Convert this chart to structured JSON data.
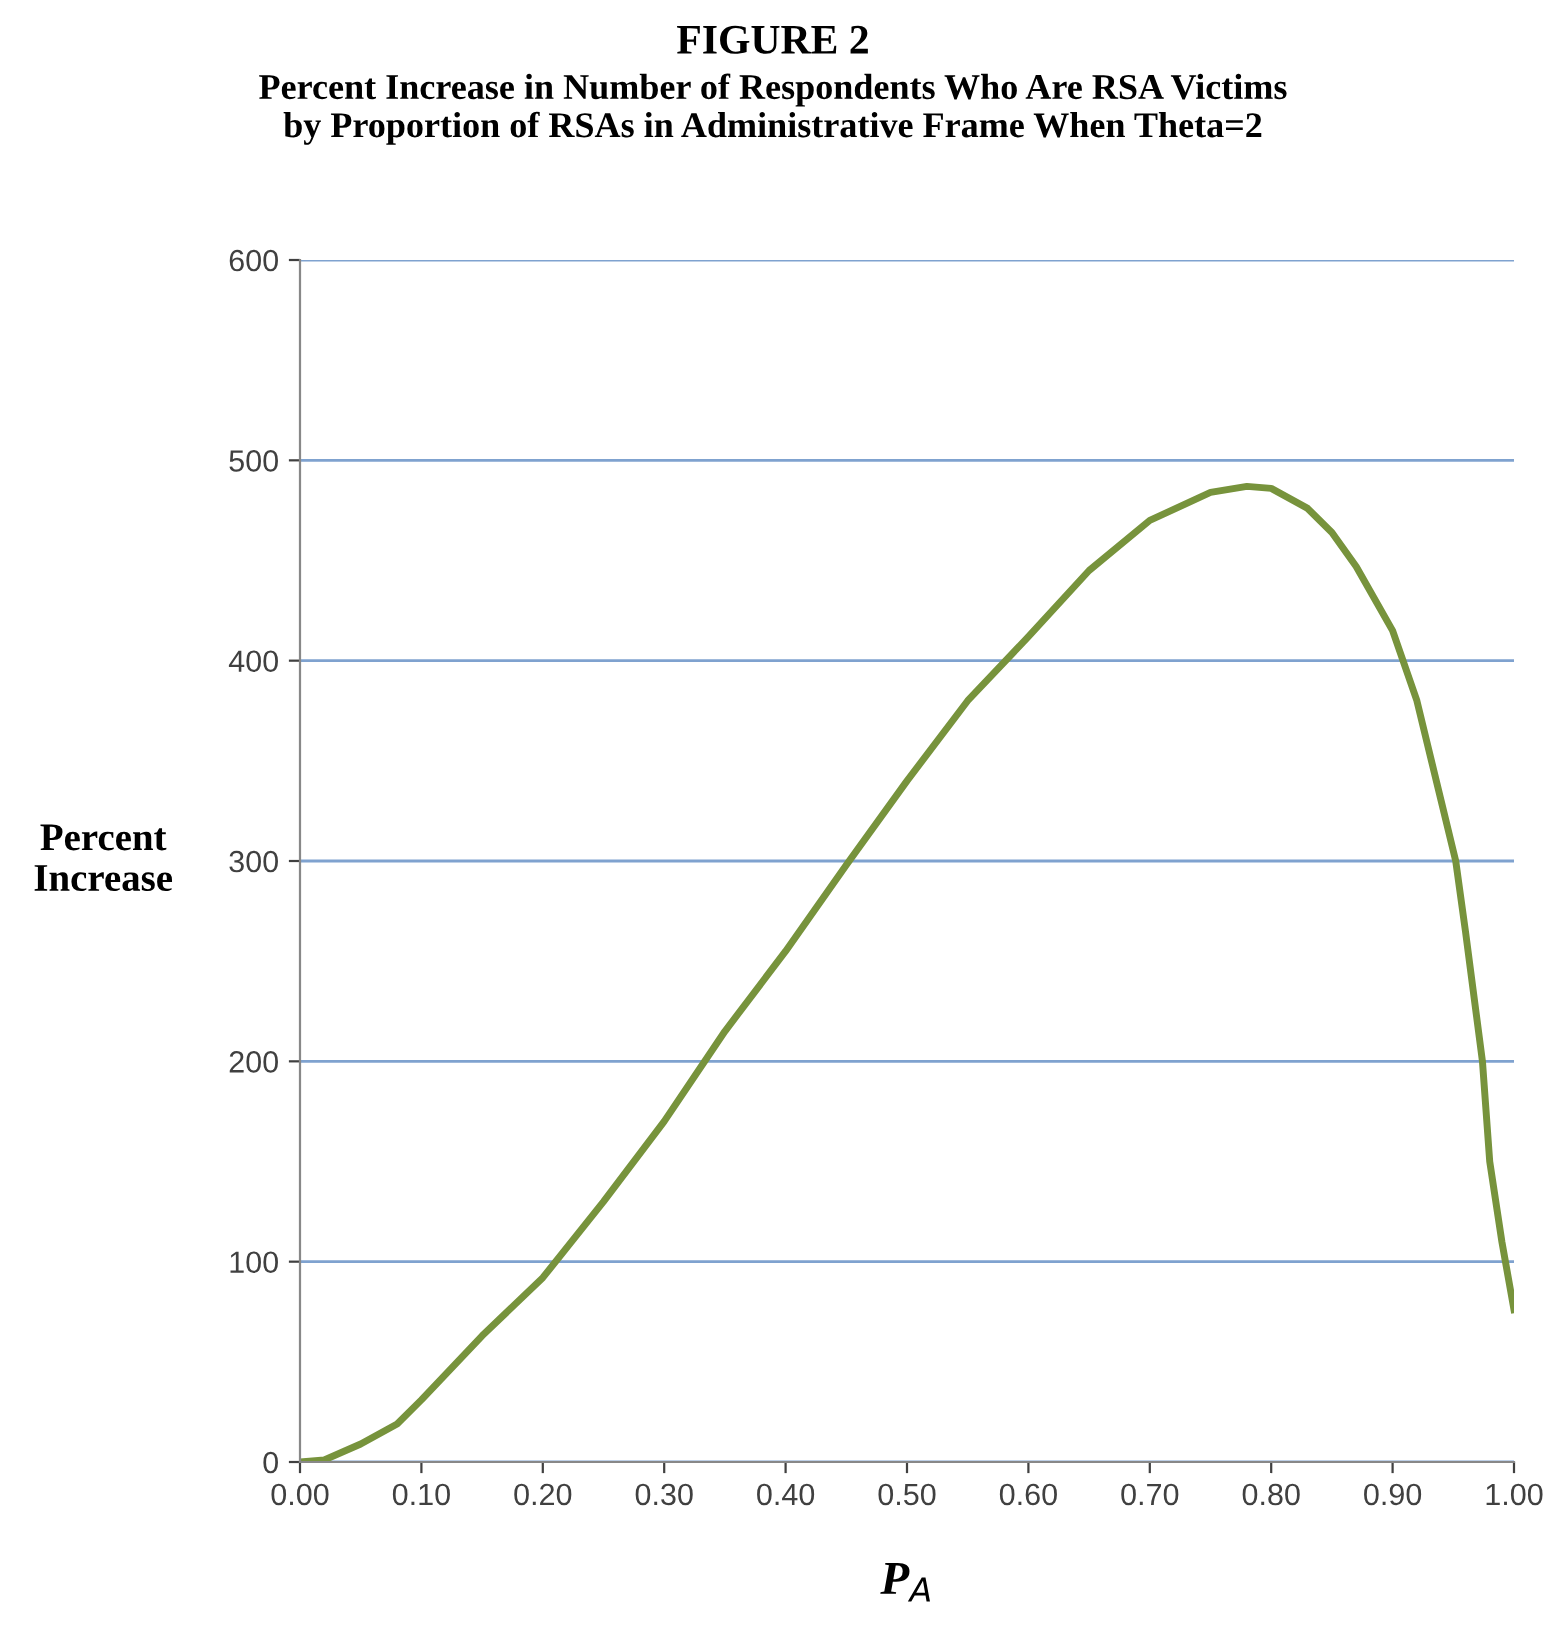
{
  "chart_data": {
    "type": "line",
    "title": "FIGURE 2",
    "subtitle": "Percent Increase in Number of Respondents Who Are RSA Victims\nby Proportion of RSAs in Administrative Frame When Theta=2",
    "xlabel": "P$_{A}$",
    "ylabel": "Percent\nIncrease",
    "series": [
      {
        "color": "#77933c",
        "x": [
          0.0,
          0.02,
          0.05,
          0.08,
          0.1,
          0.15,
          0.2,
          0.25,
          0.3,
          0.35,
          0.4,
          0.45,
          0.5,
          0.55,
          0.6,
          0.65,
          0.7,
          0.75,
          0.78,
          0.8,
          0.83,
          0.85,
          0.87,
          0.9,
          0.92,
          0.94,
          0.952,
          0.96,
          0.974,
          0.98,
          0.99,
          1.0
        ],
        "values": [
          0,
          1,
          9,
          19,
          31,
          63,
          92,
          130,
          170,
          215,
          255,
          298,
          340,
          380,
          412,
          445,
          470,
          484,
          487,
          486,
          476,
          464,
          447,
          415,
          380,
          330,
          300,
          265,
          200,
          150,
          110,
          76
        ]
      }
    ],
    "xlim": [
      0,
      1
    ],
    "xticks": [
      {
        "value": 0,
        "label": "0.00"
      },
      {
        "value": 0.1,
        "label": "0.10"
      },
      {
        "value": 0.2,
        "label": "0.20"
      },
      {
        "value": 0.3,
        "label": "0.30"
      },
      {
        "value": 0.4,
        "label": "0.40"
      },
      {
        "value": 0.5,
        "label": "0.50"
      },
      {
        "value": 0.6,
        "label": "0.60"
      },
      {
        "value": 0.7,
        "label": "0.70"
      },
      {
        "value": 0.8,
        "label": "0.80"
      },
      {
        "value": 0.9,
        "label": "0.90"
      },
      {
        "value": 1,
        "label": "1.00"
      }
    ],
    "ylim": [
      0,
      600
    ],
    "yticks": [
      0,
      100,
      200,
      300,
      400,
      500,
      600
    ],
    "grid": "y",
    "legend": false,
    "marker": "none",
    "line_style": "solid"
  }
}
